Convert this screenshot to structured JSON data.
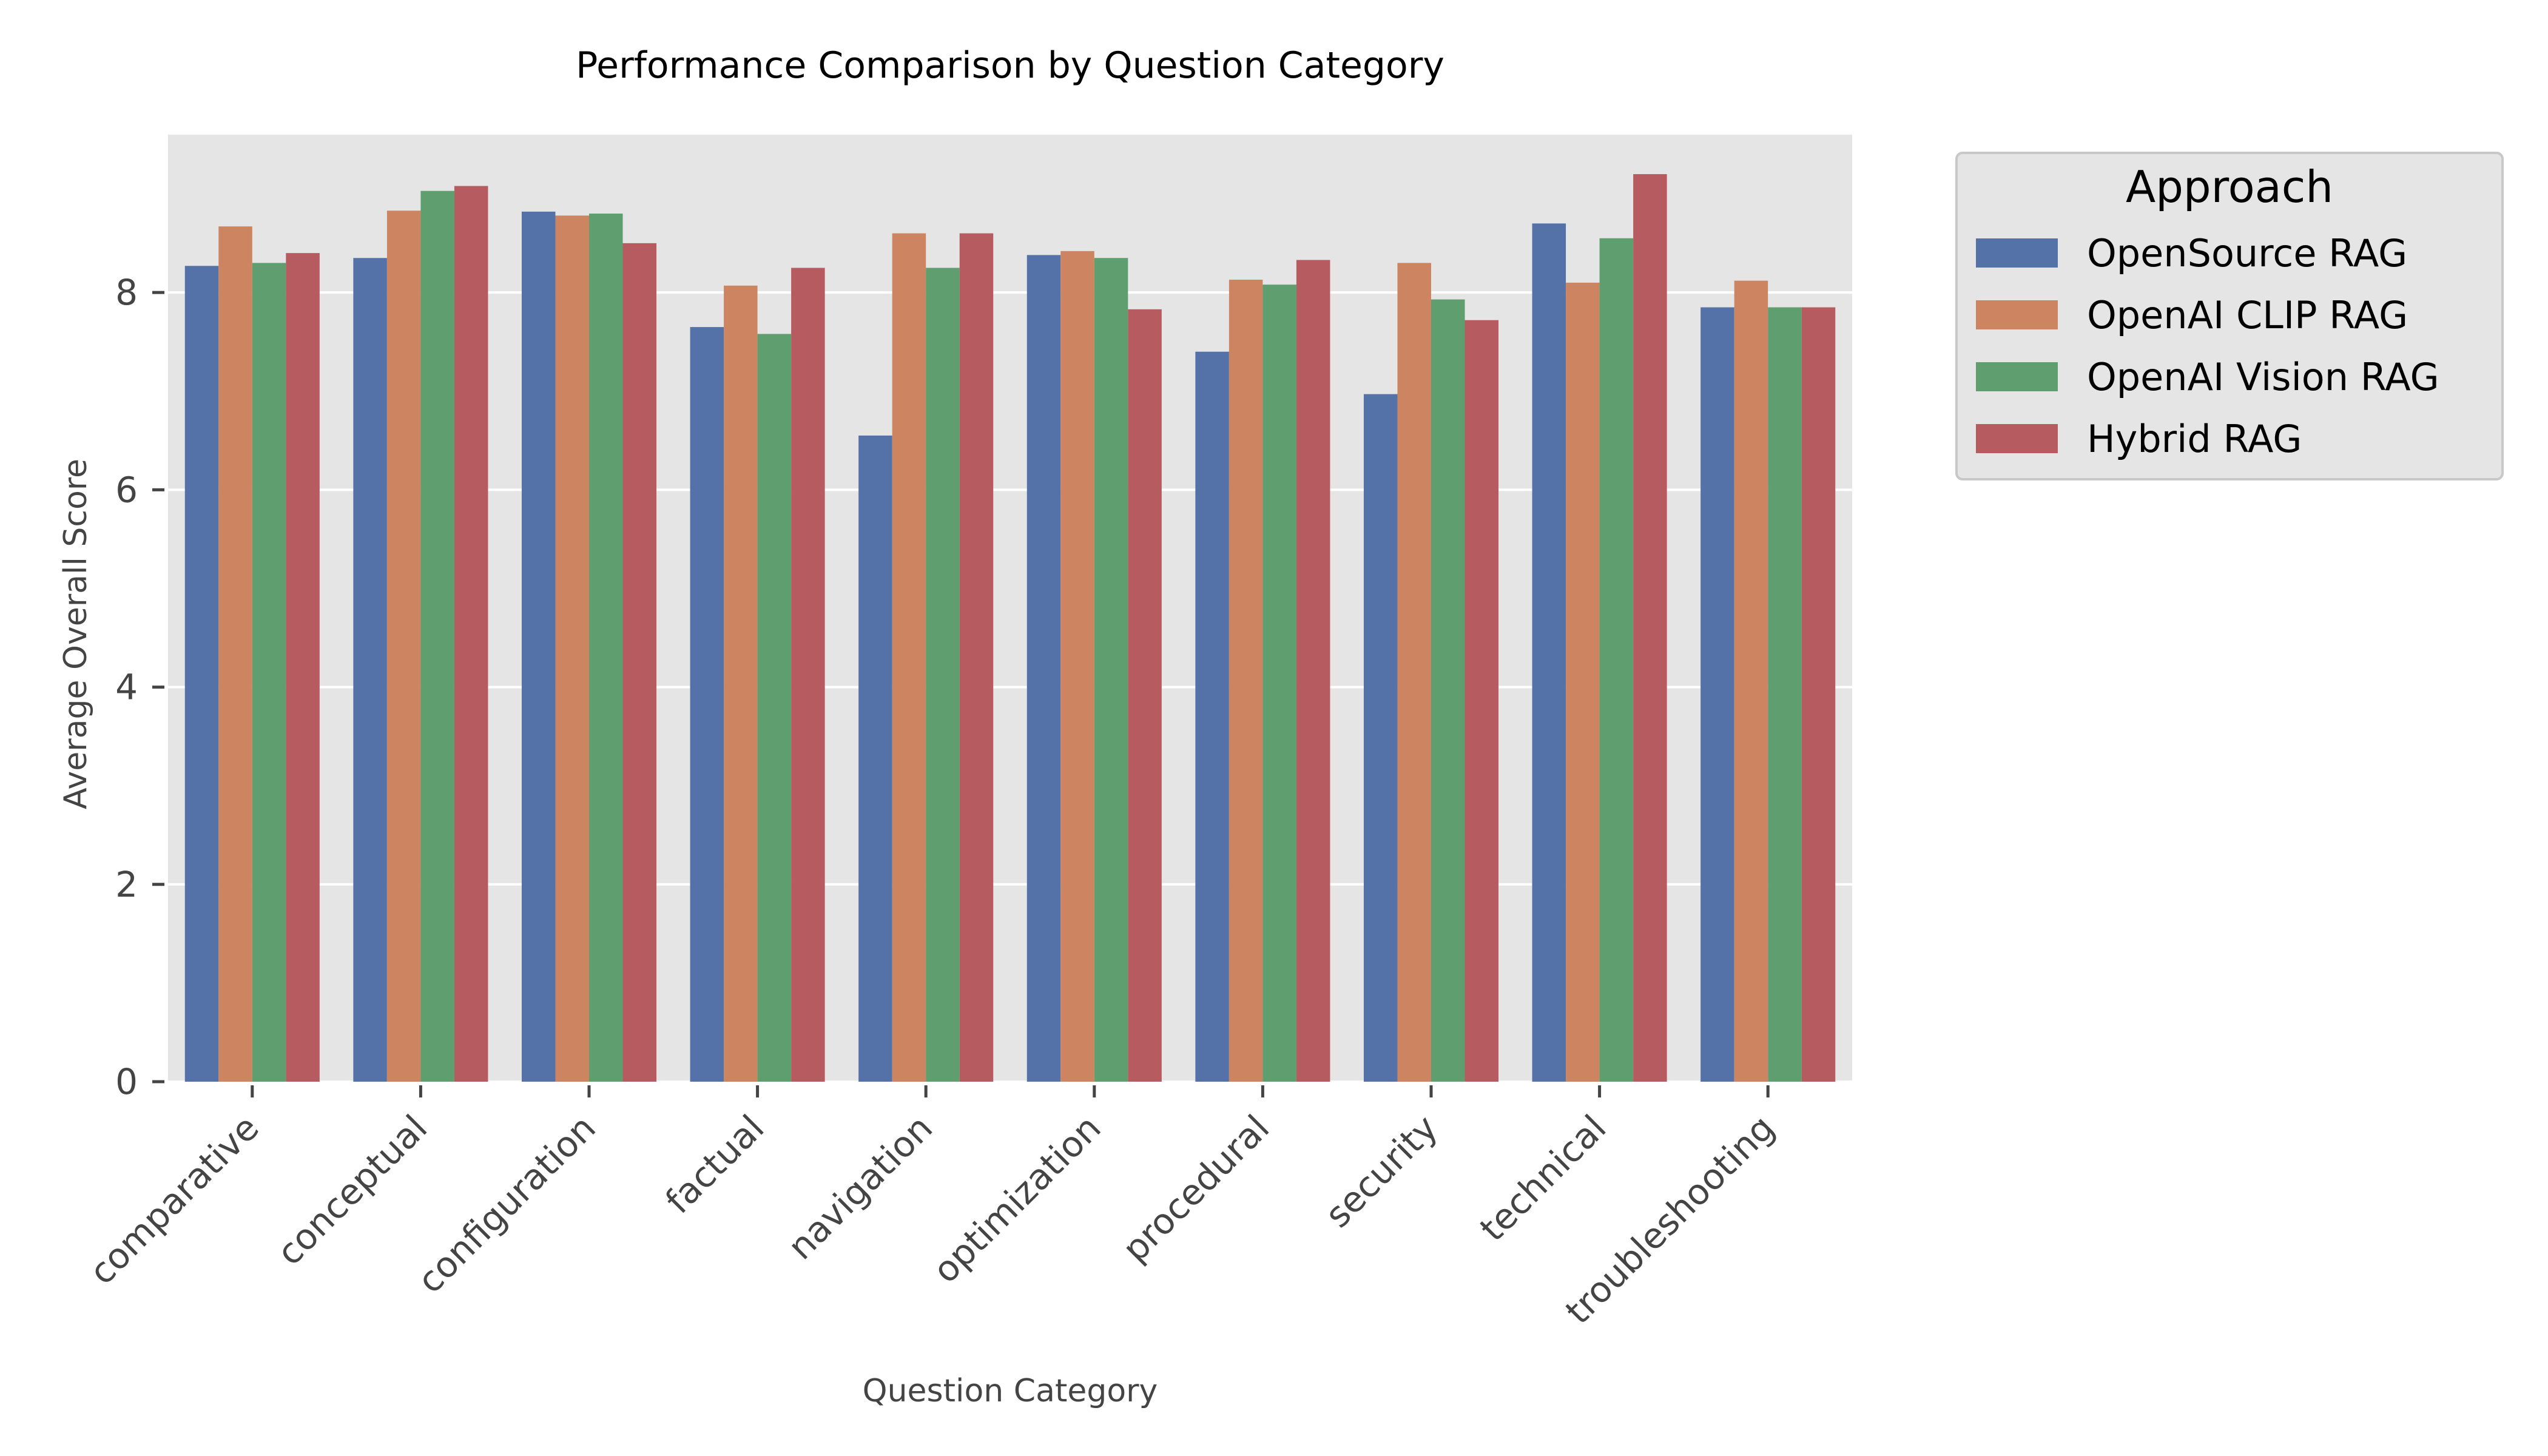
{
  "chart_data": {
    "type": "bar",
    "title": "Performance Comparison by Question Category",
    "xlabel": "Question Category",
    "ylabel": "Average Overall Score",
    "ylim": [
      0,
      9.6
    ],
    "yticks": [
      0,
      2,
      4,
      6,
      8
    ],
    "grid": true,
    "legend": {
      "title": "Approach",
      "placement": "outside-right-top"
    },
    "categories": [
      "comparative",
      "conceptual",
      "configuration",
      "factual",
      "navigation",
      "optimization",
      "procedural",
      "security",
      "technical",
      "troubleshooting"
    ],
    "series": [
      {
        "name": "OpenSource RAG",
        "color": "#5572a8",
        "values": [
          8.27,
          8.35,
          8.82,
          7.65,
          6.55,
          8.38,
          7.4,
          6.97,
          8.7,
          7.85
        ]
      },
      {
        "name": "OpenAI CLIP RAG",
        "color": "#cc8560",
        "values": [
          8.67,
          8.83,
          8.78,
          8.07,
          8.6,
          8.42,
          8.13,
          8.3,
          8.1,
          8.12
        ]
      },
      {
        "name": "OpenAI Vision RAG",
        "color": "#5f9e6e",
        "values": [
          8.3,
          9.03,
          8.8,
          7.58,
          8.25,
          8.35,
          8.08,
          7.93,
          8.55,
          7.85
        ]
      },
      {
        "name": "Hybrid RAG",
        "color": "#b65b60",
        "values": [
          8.4,
          9.08,
          8.5,
          8.25,
          8.6,
          7.83,
          8.33,
          7.72,
          9.2,
          7.85
        ]
      }
    ]
  }
}
